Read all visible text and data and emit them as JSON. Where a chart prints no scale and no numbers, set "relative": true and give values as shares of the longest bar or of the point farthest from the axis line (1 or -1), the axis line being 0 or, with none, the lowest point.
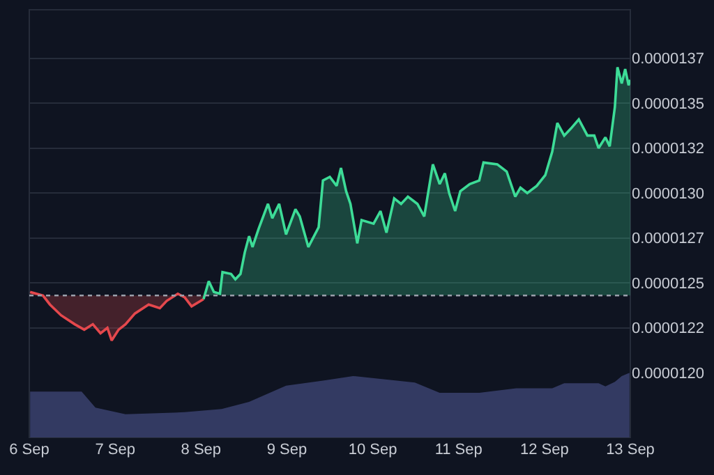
{
  "chart_data": [
    {
      "type": "area",
      "xlim": [
        "--09-06",
        "--09-13"
      ],
      "ylim": [
        1.2e-05,
        1.402e-05
      ],
      "xticks": [
        {
          "value": "--09-06",
          "label": "6 Sep"
        },
        {
          "value": "--09-07",
          "label": "7 Sep"
        },
        {
          "value": "--09-08",
          "label": "8 Sep"
        },
        {
          "value": "--09-09",
          "label": "9 Sep"
        },
        {
          "value": "--09-10",
          "label": "10 Sep"
        },
        {
          "value": "--09-11",
          "label": "11 Sep"
        },
        {
          "value": "--09-12",
          "label": "12 Sep"
        },
        {
          "value": "--09-13",
          "label": "13 Sep"
        }
      ],
      "yticks": [
        {
          "value": 1.2e-05,
          "label": "0.0000120"
        },
        {
          "value": 1.225e-05,
          "label": "0.0000122"
        },
        {
          "value": 1.25e-05,
          "label": "0.0000125"
        },
        {
          "value": 1.275e-05,
          "label": "0.0000127"
        },
        {
          "value": 1.3e-05,
          "label": "0.0000130"
        },
        {
          "value": 1.325e-05,
          "label": "0.0000132"
        },
        {
          "value": 1.35e-05,
          "label": "0.0000135"
        },
        {
          "value": 1.375e-05,
          "label": "0.0000137"
        }
      ],
      "grid": "y",
      "tick_labels": "y",
      "ref_lines": [
        {
          "axis": "y",
          "value": 1.243e-05,
          "label": null,
          "color": "#9aa0ab",
          "line_style": "dotted"
        }
      ],
      "series": [
        {
          "color": "#e5484d",
          "x": [
            "--09-06T00:14",
            "--09-06T03:50",
            "--09-06T05:46",
            "--09-06T08:53",
            "--09-06T12:43",
            "--09-06T15:22",
            "--09-06T17:46",
            "--09-06T19:55",
            "--09-06T21:50",
            "--09-06T23:02",
            "--09-07T00:58",
            "--09-07T02:53",
            "--09-07T05:31",
            "--09-07T09:22",
            "--09-07T12:29",
            "--09-07T14:24",
            "--09-07T17:31",
            "--09-07T19:26",
            "--09-07T21:22",
            "--09-08T00:43"
          ],
          "values": [
            1.245e-05,
            1.243e-05,
            1.238e-05,
            1.232e-05,
            1.227e-05,
            1.224e-05,
            1.227e-05,
            1.222e-05,
            1.225e-05,
            1.218e-05,
            1.224e-05,
            1.227e-05,
            1.233e-05,
            1.238e-05,
            1.236e-05,
            1.24e-05,
            1.244e-05,
            1.242e-05,
            1.237e-05,
            1.241e-05
          ]
        },
        {
          "color": "#3ddc97",
          "x": [
            "--09-08T00:43",
            "--09-08T02:10",
            "--09-08T03:36",
            "--09-08T05:17",
            "--09-08T06:00",
            "--09-08T08:24",
            "--09-08T09:36",
            "--09-08T11:02",
            "--09-08T12:14",
            "--09-08T13:26",
            "--09-08T14:24",
            "--09-08T16:05",
            "--09-08T18:43",
            "--09-08T19:55",
            "--09-08T21:50",
            "--09-08T23:46",
            "--09-09T02:24",
            "--09-09T03:36",
            "--09-09T06:00",
            "--09-09T08:53",
            "--09-09T10:05",
            "--09-09T12:00",
            "--09-09T13:55",
            "--09-09T15:07",
            "--09-09T16:34",
            "--09-09T17:46",
            "--09-09T19:41",
            "--09-09T20:53",
            "--09-10T00:14",
            "--09-10T02:10",
            "--09-10T03:50",
            "--09-10T06:00",
            "--09-10T07:55",
            "--09-10T09:50",
            "--09-10T12:29",
            "--09-10T14:24",
            "--09-10T16:48",
            "--09-10T18:43",
            "--09-10T20:10",
            "--09-10T21:22",
            "--09-10T23:02",
            "--09-11T00:29",
            "--09-11T03:07",
            "--09-11T05:46",
            "--09-11T06:58",
            "--09-11T10:48",
            "--09-11T13:26",
            "--09-11T15:50",
            "--09-11T17:17",
            "--09-11T19:12",
            "--09-11T21:50",
            "--09-12T00:14",
            "--09-12T02:10",
            "--09-12T03:36",
            "--09-12T05:31",
            "--09-12T07:26",
            "--09-12T09:36",
            "--09-12T12:00",
            "--09-12T13:55",
            "--09-12T15:07",
            "--09-12T17:02",
            "--09-12T18:14",
            "--09-12T19:41",
            "--09-12T20:24",
            "--09-12T21:36",
            "--09-12T22:34",
            "--09-12T23:31",
            "--09-13T00:00"
          ],
          "values": [
            1.241e-05,
            1.251e-05,
            1.245e-05,
            1.244e-05,
            1.256e-05,
            1.255e-05,
            1.252e-05,
            1.255e-05,
            1.267e-05,
            1.276e-05,
            1.27e-05,
            1.28e-05,
            1.294e-05,
            1.286e-05,
            1.294e-05,
            1.277e-05,
            1.291e-05,
            1.287e-05,
            1.27e-05,
            1.281e-05,
            1.307e-05,
            1.309e-05,
            1.304e-05,
            1.314e-05,
            1.301e-05,
            1.294e-05,
            1.272e-05,
            1.285e-05,
            1.283e-05,
            1.29e-05,
            1.278e-05,
            1.297e-05,
            1.294e-05,
            1.298e-05,
            1.294e-05,
            1.287e-05,
            1.316e-05,
            1.305e-05,
            1.311e-05,
            1.3e-05,
            1.29e-05,
            1.301e-05,
            1.305e-05,
            1.307e-05,
            1.317e-05,
            1.316e-05,
            1.312e-05,
            1.298e-05,
            1.303e-05,
            1.3e-05,
            1.304e-05,
            1.31e-05,
            1.323e-05,
            1.339e-05,
            1.332e-05,
            1.336e-05,
            1.341e-05,
            1.332e-05,
            1.332e-05,
            1.325e-05,
            1.331e-05,
            1.326e-05,
            1.348e-05,
            1.37e-05,
            1.361e-05,
            1.369e-05,
            1.36e-05,
            1.363e-05
          ]
        }
      ]
    },
    {
      "type": "area",
      "relative": true,
      "xlim": [
        "--09-06",
        "--09-13"
      ],
      "tick_labels": "x",
      "xticks": [
        {
          "value": "--09-06",
          "label": "6 Sep"
        },
        {
          "value": "--09-07",
          "label": "7 Sep"
        },
        {
          "value": "--09-08",
          "label": "8 Sep"
        },
        {
          "value": "--09-09",
          "label": "9 Sep"
        },
        {
          "value": "--09-10",
          "label": "10 Sep"
        },
        {
          "value": "--09-11",
          "label": "11 Sep"
        },
        {
          "value": "--09-12",
          "label": "12 Sep"
        },
        {
          "value": "--09-13",
          "label": "13 Sep"
        }
      ],
      "series": [
        {
          "color": "#363c66",
          "x": [
            "--09-06T00:14",
            "--09-06T14:38",
            "--09-06T18:29",
            "--09-07T02:53",
            "--09-07T19:26",
            "--09-08T05:46",
            "--09-08T13:26",
            "--09-08T23:46",
            "--09-09T10:05",
            "--09-09T18:29",
            "--09-10T06:43",
            "--09-10T11:46",
            "--09-10T18:43",
            "--09-11T05:46",
            "--09-11T16:05",
            "--09-12T02:10",
            "--09-12T05:31",
            "--09-12T15:07",
            "--09-12T17:02",
            "--09-12T19:41",
            "--09-12T21:36",
            "--09-12T23:46"
          ],
          "values": [
            0.71,
            0.71,
            0.46,
            0.36,
            0.39,
            0.44,
            0.55,
            0.8,
            0.88,
            0.95,
            0.88,
            0.85,
            0.69,
            0.69,
            0.76,
            0.76,
            0.84,
            0.84,
            0.79,
            0.86,
            0.95,
            1
          ]
        }
      ]
    }
  ]
}
